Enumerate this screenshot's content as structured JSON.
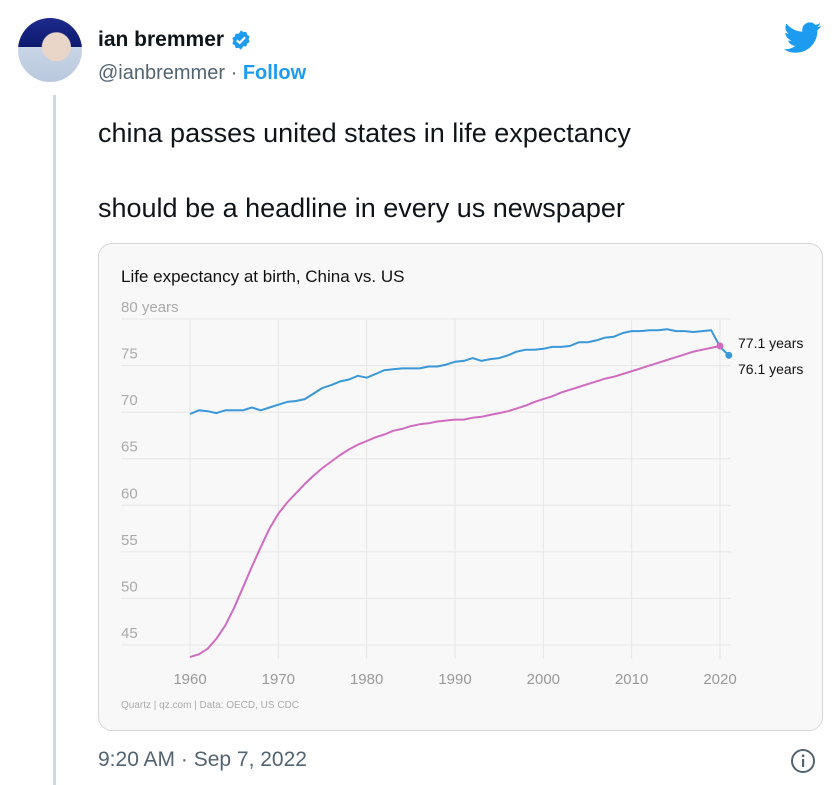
{
  "tweet": {
    "author_name": "ian bremmer",
    "verified": true,
    "handle": "@ianbremmer",
    "separator": "·",
    "follow_label": "Follow",
    "text_line1": "china passes united states in life expectancy",
    "text_line2": "should be a headline in every us newspaper",
    "timestamp": "9:20 AM · Sep 7, 2022",
    "icons": [
      "verified-badge-icon",
      "twitter-bird-icon",
      "info-icon"
    ],
    "colors": {
      "accent": "#1d9bf0",
      "text": "#0f1419",
      "muted": "#536471"
    }
  },
  "chart_data": {
    "type": "line",
    "title": "Life expectancy at birth, China vs. US",
    "y_top_label": "80 years",
    "ylim": [
      45,
      80
    ],
    "yticks": [
      80,
      75,
      70,
      65,
      60,
      55,
      50,
      45
    ],
    "ytick_labels": [
      "80 years",
      "75",
      "70",
      "65",
      "60",
      "55",
      "50",
      "45"
    ],
    "xlim": [
      1960,
      2021
    ],
    "xticks": [
      1960,
      1970,
      1980,
      1990,
      2000,
      2010,
      2020
    ],
    "xtick_labels": [
      "1960",
      "1970",
      "1980",
      "1990",
      "2000",
      "2010",
      "2020"
    ],
    "grid": true,
    "source": "Quartz | qz.com | Data: OECD, US CDC",
    "series": [
      {
        "color": "#3a97d8",
        "start_year": 1960,
        "end_label": "76.1 years",
        "values": [
          69.8,
          70.2,
          70.1,
          69.9,
          70.2,
          70.2,
          70.2,
          70.5,
          70.2,
          70.5,
          70.8,
          71.1,
          71.2,
          71.4,
          72.0,
          72.6,
          72.9,
          73.3,
          73.5,
          73.9,
          73.7,
          74.1,
          74.5,
          74.6,
          74.7,
          74.7,
          74.7,
          74.9,
          74.9,
          75.1,
          75.4,
          75.5,
          75.8,
          75.5,
          75.7,
          75.8,
          76.1,
          76.5,
          76.7,
          76.7,
          76.8,
          77.0,
          77.0,
          77.1,
          77.5,
          77.5,
          77.7,
          78.0,
          78.1,
          78.5,
          78.7,
          78.7,
          78.8,
          78.8,
          78.9,
          78.7,
          78.7,
          78.6,
          78.7,
          78.8,
          77.0,
          76.1
        ]
      },
      {
        "color": "#d06cc0",
        "start_year": 1960,
        "end_label": "77.1 years",
        "values": [
          43.7,
          44.0,
          44.6,
          45.7,
          47.1,
          49.0,
          51.2,
          53.4,
          55.5,
          57.5,
          59.1,
          60.3,
          61.3,
          62.3,
          63.2,
          64.0,
          64.7,
          65.4,
          66.0,
          66.5,
          66.9,
          67.3,
          67.6,
          68.0,
          68.2,
          68.5,
          68.7,
          68.8,
          69.0,
          69.1,
          69.2,
          69.2,
          69.4,
          69.5,
          69.7,
          69.9,
          70.1,
          70.4,
          70.7,
          71.1,
          71.4,
          71.7,
          72.1,
          72.4,
          72.7,
          73.0,
          73.3,
          73.6,
          73.8,
          74.1,
          74.4,
          74.7,
          75.0,
          75.3,
          75.6,
          75.9,
          76.2,
          76.5,
          76.7,
          76.9,
          77.1
        ]
      }
    ]
  }
}
